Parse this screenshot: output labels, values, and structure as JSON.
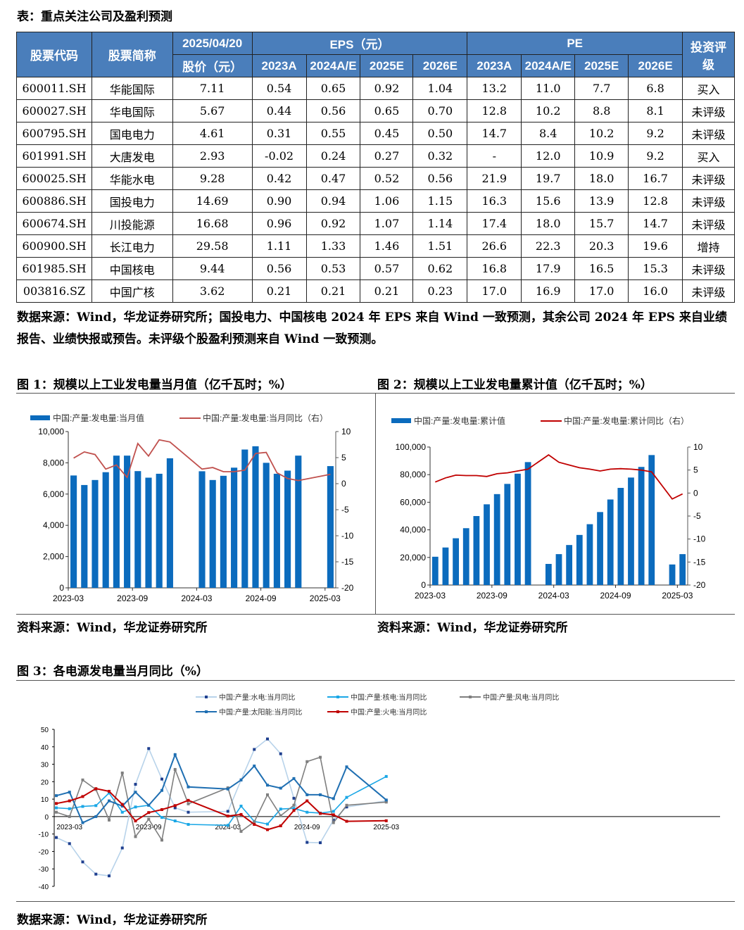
{
  "table_title": "表：重点关注公司及盈利预测",
  "table": {
    "headers": {
      "code": "股票代码",
      "name": "股票简称",
      "date": "2025/04/20",
      "price": "股价（元）",
      "eps": "EPS（元）",
      "pe": "PE",
      "rating": "投资评级",
      "years": [
        "2023A",
        "2024A/E",
        "2025E",
        "2026E"
      ]
    },
    "rows": [
      [
        "600011.SH",
        "华能国际",
        "7.11",
        "0.54",
        "0.65",
        "0.92",
        "1.04",
        "13.2",
        "11.0",
        "7.7",
        "6.8",
        "买入"
      ],
      [
        "600027.SH",
        "华电国际",
        "5.67",
        "0.44",
        "0.56",
        "0.65",
        "0.70",
        "12.8",
        "10.2",
        "8.8",
        "8.1",
        "未评级"
      ],
      [
        "600795.SH",
        "国电电力",
        "4.61",
        "0.31",
        "0.55",
        "0.45",
        "0.50",
        "14.7",
        "8.4",
        "10.2",
        "9.2",
        "未评级"
      ],
      [
        "601991.SH",
        "大唐发电",
        "2.93",
        "-0.02",
        "0.24",
        "0.27",
        "0.32",
        "-",
        "12.0",
        "10.9",
        "9.2",
        "买入"
      ],
      [
        "600025.SH",
        "华能水电",
        "9.28",
        "0.42",
        "0.47",
        "0.52",
        "0.56",
        "21.9",
        "19.7",
        "18.0",
        "16.7",
        "未评级"
      ],
      [
        "600886.SH",
        "国投电力",
        "14.69",
        "0.90",
        "0.94",
        "1.06",
        "1.15",
        "16.3",
        "15.6",
        "13.9",
        "12.8",
        "未评级"
      ],
      [
        "600674.SH",
        "川投能源",
        "16.68",
        "0.96",
        "0.92",
        "1.07",
        "1.14",
        "17.4",
        "18.0",
        "15.7",
        "14.7",
        "未评级"
      ],
      [
        "600900.SH",
        "长江电力",
        "29.58",
        "1.11",
        "1.33",
        "1.46",
        "1.51",
        "26.6",
        "22.3",
        "20.3",
        "19.6",
        "增持"
      ],
      [
        "601985.SH",
        "中国核电",
        "9.44",
        "0.56",
        "0.53",
        "0.57",
        "0.62",
        "16.8",
        "17.9",
        "16.5",
        "15.3",
        "未评级"
      ],
      [
        "003816.SZ",
        "中国广核",
        "3.62",
        "0.21",
        "0.21",
        "0.21",
        "0.23",
        "17.0",
        "16.9",
        "17.0",
        "16.0",
        "未评级"
      ]
    ]
  },
  "table_note": "数据来源：Wind，华龙证券研究所；国投电力、中国核电 2024 年 EPS 来自 Wind 一致预测，其余公司 2024 年 EPS 来自业绩报告、业绩快报或预告。未评级个股盈利预测来自 Wind 一致预测。",
  "fig1_title": "图 1：规模以上工业发电量当月值（亿千瓦时；%）",
  "fig2_title": "图 2：规模以上工业发电量累计值（亿千瓦时；%）",
  "fig3_title": "图 3：各电源发电量当月同比（%）",
  "source1": "资料来源：Wind，华龙证券研究所",
  "source2": "资料来源：Wind，华龙证券研究所",
  "source3": "数据来源：Wind，华龙证券研究所",
  "chart_data": [
    {
      "type": "bar+line",
      "x": [
        "2023-03",
        "2023-04",
        "2023-05",
        "2023-06",
        "2023-07",
        "2023-08",
        "2023-09",
        "2023-10",
        "2023-11",
        "2023-12",
        "2024-01",
        "2024-02",
        "2024-03",
        "2024-04",
        "2024-05",
        "2024-06",
        "2024-07",
        "2024-08",
        "2024-09",
        "2024-10",
        "2024-11",
        "2024-12",
        "2025-01",
        "2025-02",
        "2025-03"
      ],
      "xticks": [
        "2023-03",
        "2023-09",
        "2024-03",
        "2024-09",
        "2025-03"
      ],
      "ylim": [
        0,
        10000
      ],
      "yticks": [
        "0",
        "2,000",
        "4,000",
        "6,000",
        "8,000",
        "10,000"
      ],
      "y2lim": [
        -20,
        10
      ],
      "y2ticks": [
        "-20",
        "-15",
        "-10",
        "-5",
        "0",
        "5",
        "10"
      ],
      "series": [
        {
          "name": "中国:产量:发电量:当月值",
          "kind": "bar",
          "color": "#0b6bbd",
          "values": [
            7190,
            6580,
            6900,
            7400,
            8460,
            8460,
            7470,
            7050,
            7300,
            8290,
            null,
            null,
            7460,
            6900,
            7170,
            7690,
            8850,
            9060,
            8000,
            7300,
            7500,
            8460,
            null,
            null,
            7790
          ]
        },
        {
          "name": "中国:产量:发电量:当月同比（右）",
          "kind": "line",
          "axis": "right",
          "color": "#c0504d",
          "values": [
            4.9,
            6.1,
            5.6,
            2.8,
            3.6,
            1.2,
            7.7,
            5.3,
            8.4,
            8.0,
            null,
            null,
            2.8,
            3.1,
            2.3,
            2.3,
            2.6,
            5.8,
            6.0,
            2.1,
            1.0,
            0.6,
            null,
            null,
            1.8
          ]
        }
      ],
      "legend": "top",
      "grid": false
    },
    {
      "type": "bar+line",
      "x": [
        "2023-03",
        "2023-04",
        "2023-05",
        "2023-06",
        "2023-07",
        "2023-08",
        "2023-09",
        "2023-10",
        "2023-11",
        "2023-12",
        "2024-01",
        "2024-02",
        "2024-03",
        "2024-04",
        "2024-05",
        "2024-06",
        "2024-07",
        "2024-08",
        "2024-09",
        "2024-10",
        "2024-11",
        "2024-12",
        "2025-01",
        "2025-02",
        "2025-03"
      ],
      "xticks": [
        "2023-03",
        "2023-09",
        "2024-03",
        "2024-09",
        "2025-03"
      ],
      "ylim": [
        0,
        100000
      ],
      "yticks": [
        "0",
        "20,000",
        "40,000",
        "60,000",
        "80,000",
        "100,000"
      ],
      "y2lim": [
        -20,
        10
      ],
      "y2ticks": [
        "-20",
        "-15",
        "-10",
        "-5",
        "0",
        "5",
        "10"
      ],
      "series": [
        {
          "name": "中国:产量:发电量:累计值",
          "kind": "bar",
          "color": "#0b6bbd",
          "values": [
            20500,
            27200,
            33900,
            41200,
            50000,
            58500,
            65900,
            73300,
            80700,
            89100,
            null,
            15300,
            22400,
            29000,
            36300,
            44100,
            52900,
            62000,
            70400,
            77900,
            85600,
            94200,
            null,
            14900,
            22400
          ]
        },
        {
          "name": "中国:产量:发电量:累计同比（右）",
          "kind": "line",
          "axis": "right",
          "color": "#c00000",
          "values": [
            2.4,
            3.3,
            3.9,
            3.8,
            3.8,
            3.6,
            4.2,
            4.4,
            4.8,
            5.2,
            null,
            8.3,
            6.7,
            6.1,
            5.5,
            5.2,
            4.8,
            5.2,
            5.3,
            5.2,
            5.0,
            4.6,
            null,
            -1.3,
            -0.2
          ]
        }
      ],
      "legend": "top",
      "grid": false
    },
    {
      "type": "line",
      "x": [
        "2023-02",
        "2023-03",
        "2023-04",
        "2023-05",
        "2023-06",
        "2023-07",
        "2023-08",
        "2023-09",
        "2023-10",
        "2023-11",
        "2023-12",
        "2024-03",
        "2024-04",
        "2024-05",
        "2024-06",
        "2024-07",
        "2024-08",
        "2024-09",
        "2024-10",
        "2024-11",
        "2024-12",
        "2025-03"
      ],
      "xticks": [
        "2023-03",
        "2023-09",
        "2024-03",
        "2024-09",
        "2025-03"
      ],
      "ylim": [
        -40,
        50
      ],
      "yticks": [
        "-40",
        "-30",
        "-20",
        "-10",
        "0",
        "10",
        "20",
        "30",
        "40",
        "50"
      ],
      "series": [
        {
          "name": "中国:产量:水电:当月同比",
          "color": "#b8d3ea",
          "marker": "#1f3f8f",
          "values": [
            -12,
            -15.5,
            -26,
            -33,
            -34,
            -18,
            18.5,
            39,
            21.5,
            5,
            2.5,
            3,
            21,
            38.5,
            44.5,
            36,
            10.5,
            -14.8,
            -15,
            -2,
            5.5,
            9
          ]
        },
        {
          "name": "中国:产量:核电:当月同比",
          "color": "#1aa7e6",
          "values": [
            5,
            4.5,
            5.8,
            6.3,
            13.5,
            2.5,
            5.5,
            6.5,
            -0.5,
            -2.5,
            -4.5,
            -5,
            6,
            -2.8,
            -4.3,
            4.3,
            4.7,
            2.5,
            2,
            3,
            11,
            23
          ]
        },
        {
          "name": "中国:产量:风电:当月同比",
          "color": "#7f7f7f",
          "values": [
            2.5,
            0,
            21,
            15.5,
            -2,
            25,
            -11.5,
            -1.5,
            -13.5,
            27,
            7.3,
            16.5,
            -8.5,
            -3,
            12.5,
            0.5,
            6.5,
            31.5,
            34,
            -3.5,
            6.5,
            8.3
          ]
        },
        {
          "name": "中国:产量:太阳能:当月同比",
          "color": "#1f6fb2",
          "values": [
            12,
            14,
            -3.5,
            0,
            9,
            6,
            14,
            6.5,
            15,
            35.5,
            17,
            15.8,
            21,
            29,
            18,
            16.3,
            21.8,
            12.5,
            12.5,
            10.3,
            28.5,
            9.5
          ]
        },
        {
          "name": "中国:产量:火电:当月同比",
          "color": "#c00000",
          "values": [
            7.5,
            9,
            11.5,
            16,
            14.5,
            7,
            -2.5,
            2.3,
            4,
            6.3,
            9.3,
            0.3,
            1.2,
            -4.5,
            -7.5,
            -5.3,
            3.5,
            9,
            1.8,
            1,
            -2.7,
            -2.4
          ]
        }
      ],
      "legend": "top",
      "grid": false
    }
  ]
}
